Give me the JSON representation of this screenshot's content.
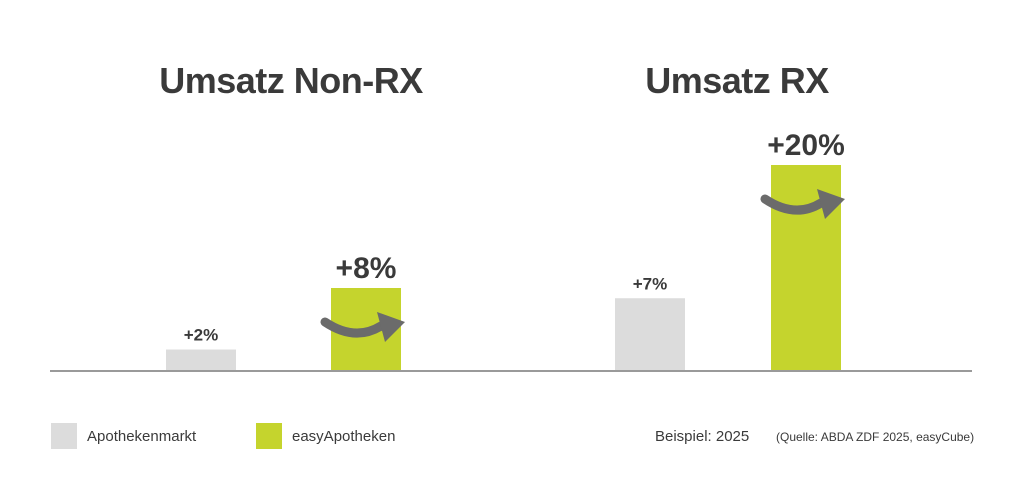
{
  "chart_data": [
    {
      "type": "bar",
      "title": "Umsatz Non-RX",
      "series": [
        {
          "name": "Apothekenmarkt",
          "values": [
            2
          ],
          "label": "+2%"
        },
        {
          "name": "easyApotheken",
          "values": [
            8
          ],
          "label": "+8%"
        }
      ],
      "ylim": [
        0,
        22
      ]
    },
    {
      "type": "bar",
      "title": "Umsatz RX",
      "series": [
        {
          "name": "Apothekenmarkt",
          "values": [
            7
          ],
          "label": "+7%"
        },
        {
          "name": "easyApotheken",
          "values": [
            20
          ],
          "label": "+20%"
        }
      ],
      "ylim": [
        0,
        22
      ]
    }
  ],
  "legend": {
    "placement": "bottom-left",
    "items": [
      {
        "label": "Apothekenmarkt",
        "color": "#dcdcdc"
      },
      {
        "label": "easyApotheken",
        "color": "#c5d42d"
      }
    ]
  },
  "footer": {
    "year_label": "Beispiel: 2025",
    "source": "(Quelle: ABDA ZDF 2025, easyCube)"
  },
  "colors": {
    "market": "#dcdcdc",
    "easy": "#c5d42d",
    "arrow": "#6b6b6b",
    "text": "#3a3a3a",
    "baseline": "#9a9a9a"
  },
  "icons": {
    "growth_arrow": "curved-arrow-right-icon"
  }
}
